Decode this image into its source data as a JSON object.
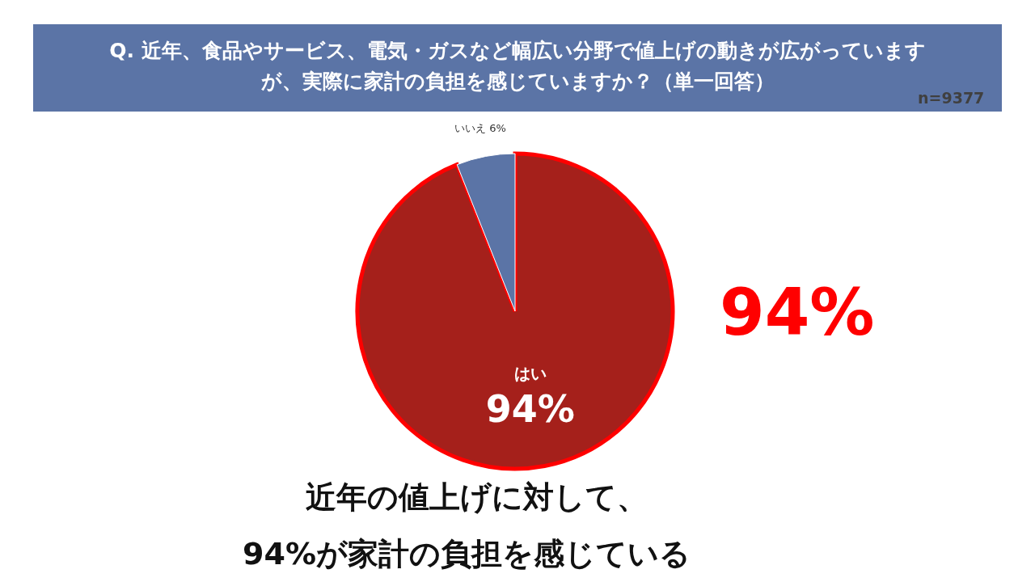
{
  "chart_data": {
    "type": "pie",
    "title": "Q. 近年、食品やサービス、電気・ガスなど幅広い分野で値上げの動きが広がっていますが、実際に家計の負担を感じていますか？（単一回答）",
    "categories": [
      "はい",
      "いいえ"
    ],
    "values": [
      94,
      6
    ],
    "colors": [
      "#a5201b",
      "#5b74a6"
    ],
    "value_labels": [
      "94%",
      "6%"
    ],
    "annotations": [
      "n=9377",
      "94%",
      "近年の値上げに対して、",
      "94%が家計の負担を感じている"
    ]
  }
}
